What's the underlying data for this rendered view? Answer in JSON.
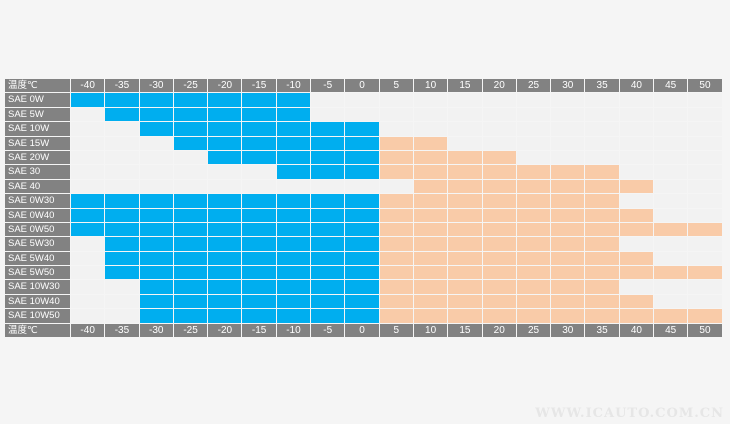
{
  "chart_data": {
    "type": "heatmap",
    "corner_label": "温度℃",
    "temperatures": [
      "-40",
      "-35",
      "-30",
      "-25",
      "-20",
      "-15",
      "-10",
      "-5",
      "0",
      "5",
      "10",
      "15",
      "20",
      "25",
      "30",
      "35",
      "40",
      "45",
      "50"
    ],
    "colors": {
      "cold": "#00aeef",
      "hot": "#f9cba8"
    },
    "grades": [
      {
        "name": "SAE 0W",
        "cold_range": [
          -40,
          -10
        ],
        "hot_range": null
      },
      {
        "name": "SAE 5W",
        "cold_range": [
          -35,
          -10
        ],
        "hot_range": null
      },
      {
        "name": "SAE 10W",
        "cold_range": [
          -30,
          0
        ],
        "hot_range": null
      },
      {
        "name": "SAE 15W",
        "cold_range": [
          -25,
          0
        ],
        "hot_range": [
          5,
          10
        ]
      },
      {
        "name": "SAE 20W",
        "cold_range": [
          -20,
          0
        ],
        "hot_range": [
          5,
          20
        ]
      },
      {
        "name": "SAE 30",
        "cold_range": [
          -10,
          0
        ],
        "hot_range": [
          5,
          35
        ]
      },
      {
        "name": "SAE 40",
        "cold_range": null,
        "hot_range": [
          10,
          40
        ]
      },
      {
        "name": "SAE 0W30",
        "cold_range": [
          -40,
          0
        ],
        "hot_range": [
          5,
          35
        ]
      },
      {
        "name": "SAE 0W40",
        "cold_range": [
          -40,
          0
        ],
        "hot_range": [
          5,
          40
        ]
      },
      {
        "name": "SAE 0W50",
        "cold_range": [
          -40,
          0
        ],
        "hot_range": [
          5,
          50
        ]
      },
      {
        "name": "SAE 5W30",
        "cold_range": [
          -35,
          0
        ],
        "hot_range": [
          5,
          35
        ]
      },
      {
        "name": "SAE 5W40",
        "cold_range": [
          -35,
          0
        ],
        "hot_range": [
          5,
          40
        ]
      },
      {
        "name": "SAE 5W50",
        "cold_range": [
          -35,
          0
        ],
        "hot_range": [
          5,
          50
        ]
      },
      {
        "name": "SAE 10W30",
        "cold_range": [
          -30,
          0
        ],
        "hot_range": [
          5,
          35
        ]
      },
      {
        "name": "SAE 10W40",
        "cold_range": [
          -30,
          0
        ],
        "hot_range": [
          5,
          40
        ]
      },
      {
        "name": "SAE 10W50",
        "cold_range": [
          -30,
          0
        ],
        "hot_range": [
          5,
          50
        ]
      }
    ]
  },
  "watermark": "WWW.ICAUTO.COM.CN"
}
